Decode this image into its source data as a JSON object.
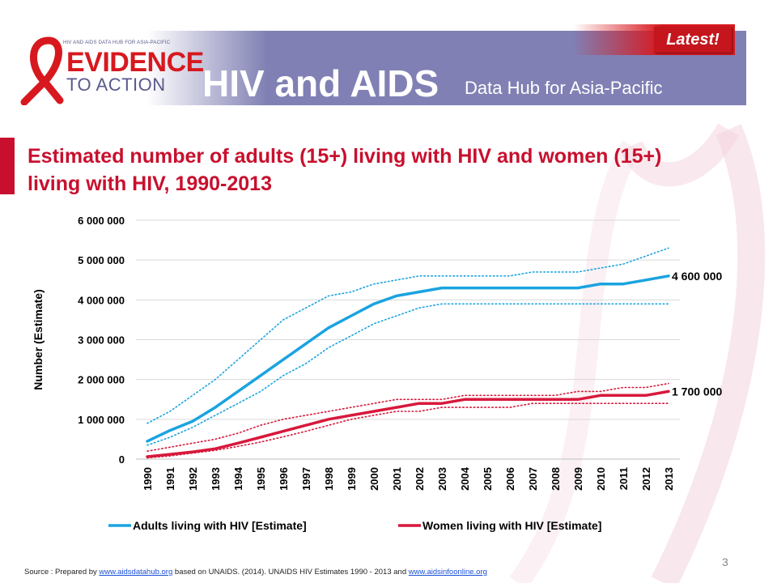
{
  "header": {
    "logo_top": "HIV AND AIDS DATA HUB FOR ASIA-PACIFIC",
    "logo_evidence": "EVIDENCE",
    "logo_action": "TO ACTION",
    "title": "HIV and AIDS",
    "subtitle": "Data Hub for Asia-Pacific",
    "badge": "Latest!"
  },
  "slide": {
    "title": "Estimated number of adults (15+) living with HIV and women (15+) living with HIV, 1990-2013",
    "page_number": "3"
  },
  "footer": {
    "prefix": "Source : Prepared by ",
    "link1": "www.aidsdatahub.org",
    "middle": " based on  UNAIDS. (2014). UNAIDS HIV Estimates 1990 - 2013 and ",
    "link2": "www.aidsinfoonline.org"
  },
  "colors": {
    "adults": "#1aa3e0",
    "women": "#d7193c",
    "title": "#c8102e",
    "banner": "#8080b4"
  },
  "chart_data": {
    "type": "line",
    "title": "Estimated number of adults (15+) living with HIV and women (15+) living with HIV, 1990-2013",
    "ylabel": "Number (Estimate)",
    "xlabel": "",
    "ylim": [
      0,
      6000000
    ],
    "yticks": [
      0,
      1000000,
      2000000,
      3000000,
      4000000,
      5000000,
      6000000
    ],
    "ytick_labels": [
      "0",
      "1 000 000",
      "2 000 000",
      "3 000 000",
      "4 000 000",
      "5 000 000",
      "6 000 000"
    ],
    "grid": true,
    "legend": "bottom",
    "categories": [
      "1990",
      "1991",
      "1992",
      "1993",
      "1994",
      "1995",
      "1996",
      "1997",
      "1998",
      "1999",
      "2000",
      "2001",
      "2002",
      "2003",
      "2004",
      "2005",
      "2006",
      "2007",
      "2008",
      "2009",
      "2010",
      "2011",
      "2012",
      "2013"
    ],
    "series": [
      {
        "name": "Adults living with HIV [Estimate]",
        "color": "#1aa3e0",
        "style": "solid",
        "values": [
          450000,
          720000,
          950000,
          1300000,
          1700000,
          2100000,
          2500000,
          2900000,
          3300000,
          3600000,
          3900000,
          4100000,
          4200000,
          4300000,
          4300000,
          4300000,
          4300000,
          4300000,
          4300000,
          4300000,
          4400000,
          4400000,
          4500000,
          4600000
        ]
      },
      {
        "name": "",
        "role": "upper-bound",
        "color": "#1aa3e0",
        "style": "dotted",
        "values": [
          900000,
          1200000,
          1600000,
          2000000,
          2500000,
          3000000,
          3500000,
          3800000,
          4100000,
          4200000,
          4400000,
          4500000,
          4600000,
          4600000,
          4600000,
          4600000,
          4600000,
          4700000,
          4700000,
          4700000,
          4800000,
          4900000,
          5100000,
          5300000
        ]
      },
      {
        "name": "",
        "role": "lower-bound",
        "color": "#1aa3e0",
        "style": "dotted",
        "values": [
          350000,
          550000,
          800000,
          1100000,
          1400000,
          1700000,
          2100000,
          2400000,
          2800000,
          3100000,
          3400000,
          3600000,
          3800000,
          3900000,
          3900000,
          3900000,
          3900000,
          3900000,
          3900000,
          3900000,
          3900000,
          3900000,
          3900000,
          3900000
        ]
      },
      {
        "name": "Women living with HIV [Estimate]",
        "color": "#d7193c",
        "style": "solid",
        "values": [
          60000,
          120000,
          180000,
          260000,
          400000,
          550000,
          700000,
          850000,
          1000000,
          1100000,
          1200000,
          1300000,
          1400000,
          1400000,
          1500000,
          1500000,
          1500000,
          1500000,
          1500000,
          1500000,
          1600000,
          1600000,
          1600000,
          1700000
        ]
      },
      {
        "name": "",
        "role": "upper-bound",
        "color": "#d7193c",
        "style": "dotted",
        "values": [
          200000,
          300000,
          400000,
          500000,
          650000,
          850000,
          1000000,
          1100000,
          1200000,
          1300000,
          1400000,
          1500000,
          1500000,
          1500000,
          1600000,
          1600000,
          1600000,
          1600000,
          1600000,
          1700000,
          1700000,
          1800000,
          1800000,
          1900000
        ]
      },
      {
        "name": "",
        "role": "lower-bound",
        "color": "#d7193c",
        "style": "dotted",
        "values": [
          30000,
          80000,
          150000,
          220000,
          320000,
          430000,
          560000,
          700000,
          850000,
          1000000,
          1100000,
          1200000,
          1200000,
          1300000,
          1300000,
          1300000,
          1300000,
          1400000,
          1400000,
          1400000,
          1400000,
          1400000,
          1400000,
          1400000
        ]
      }
    ],
    "annotations": [
      {
        "text": "4 600 000",
        "series": 0,
        "x": "2013"
      },
      {
        "text": "1 700 000",
        "series": 3,
        "x": "2013"
      }
    ]
  }
}
